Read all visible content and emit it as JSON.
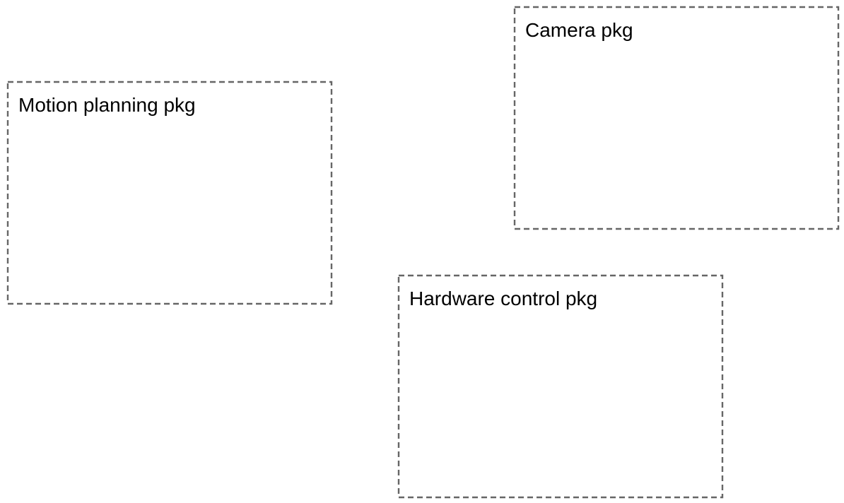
{
  "packages": [
    {
      "id": "motion",
      "label": "Motion planning pkg"
    },
    {
      "id": "camera",
      "label": "Camera pkg"
    },
    {
      "id": "hardware",
      "label": "Hardware control pkg"
    }
  ],
  "colors": {
    "border": "#666666",
    "text": "#000000",
    "background": "#ffffff"
  }
}
